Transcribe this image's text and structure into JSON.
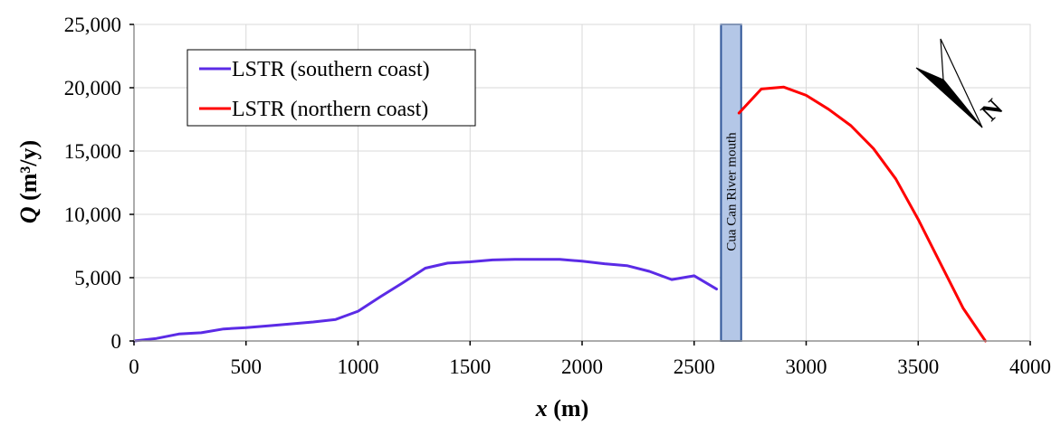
{
  "chart_data": {
    "type": "line",
    "xlabel_symbol": "x",
    "xlabel_unit": "(m)",
    "ylabel_symbol": "Q",
    "ylabel_unit": "(m³/y)",
    "xlim": [
      0,
      4000
    ],
    "ylim": [
      0,
      25000
    ],
    "xticks": [
      0,
      500,
      1000,
      1500,
      2000,
      2500,
      3000,
      3500,
      4000
    ],
    "xtick_labels": [
      "0",
      "500",
      "1000",
      "1500",
      "2000",
      "2500",
      "3000",
      "3500",
      "4000"
    ],
    "yticks": [
      0,
      5000,
      10000,
      15000,
      20000,
      25000
    ],
    "ytick_labels": [
      "0",
      "5,000",
      "10,000",
      "15,000",
      "20,000",
      "25,000"
    ],
    "grid": true,
    "legend_position": "top-left",
    "series": [
      {
        "name": "LSTR (southern coast)",
        "color": "#5b2be6",
        "x": [
          0,
          100,
          200,
          300,
          400,
          500,
          600,
          700,
          800,
          900,
          1000,
          1100,
          1200,
          1300,
          1400,
          1500,
          1600,
          1700,
          1800,
          1900,
          2000,
          2100,
          2200,
          2300,
          2400,
          2500,
          2600
        ],
        "y": [
          0,
          200,
          550,
          650,
          950,
          1050,
          1200,
          1350,
          1500,
          1700,
          2350,
          3500,
          4600,
          5750,
          6150,
          6250,
          6400,
          6450,
          6450,
          6450,
          6300,
          6100,
          5950,
          5500,
          4850,
          5150,
          4100
        ]
      },
      {
        "name": "LSTR (northern coast)",
        "color": "#ff0000",
        "x": [
          2700,
          2800,
          2900,
          3000,
          3100,
          3200,
          3300,
          3400,
          3500,
          3600,
          3700,
          3800
        ],
        "y": [
          18000,
          19900,
          20050,
          19400,
          18300,
          17000,
          15200,
          12800,
          9600,
          6100,
          2600,
          0
        ]
      }
    ],
    "annotation_band": {
      "label": "Cua Can River mouth",
      "x_from": 2620,
      "x_to": 2710,
      "color": "#b4c7e7",
      "border": "#2f5597"
    },
    "north_arrow_label": "N"
  }
}
